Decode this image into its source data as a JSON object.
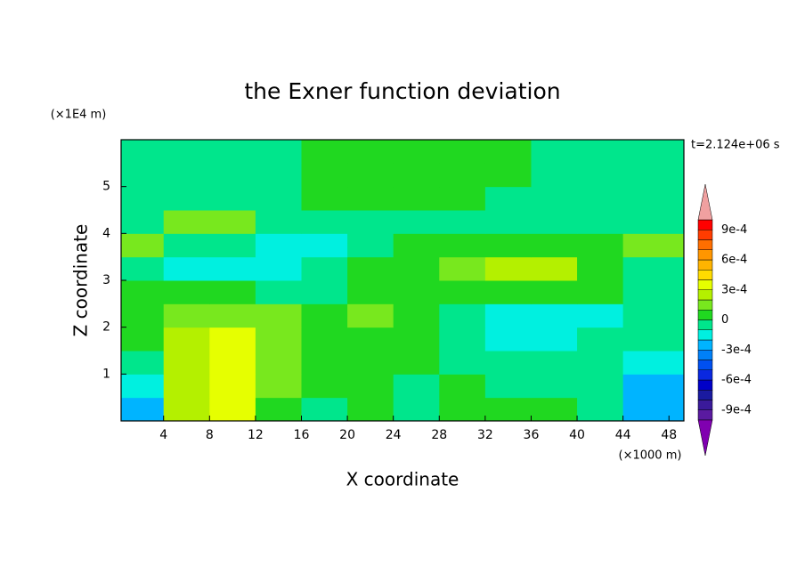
{
  "chart_data": {
    "type": "contour",
    "title": "the Exner function deviation",
    "x_label": "X coordinate",
    "y_label": "Z coordinate",
    "x_unit": "(×1000 m)",
    "y_unit": "(×1E4 m)",
    "time_label": "t=2.124e+06 s",
    "xlim": [
      0.3,
      49.3
    ],
    "ylim": [
      0,
      6
    ],
    "xticks": [
      4,
      8,
      12,
      16,
      20,
      24,
      28,
      32,
      36,
      40,
      44,
      48
    ],
    "yticks": [
      1,
      2,
      3,
      4,
      5
    ],
    "x": [
      2,
      6,
      10,
      14,
      18,
      22,
      26,
      30,
      34,
      38,
      42,
      46
    ],
    "y": [
      0.25,
      0.75,
      1.25,
      1.75,
      2.25,
      2.75,
      3.25,
      3.75,
      4.25,
      4.75,
      5.25,
      5.75
    ],
    "z": [
      [
        -0.00025,
        0.00025,
        0.00035,
        5e-05,
        -5e-05,
        5e-05,
        -5e-05,
        5e-05,
        5e-05,
        5e-05,
        -5e-05,
        -0.00025
      ],
      [
        -0.00015,
        0.00025,
        0.00035,
        0.00015,
        5e-05,
        5e-05,
        -5e-05,
        5e-05,
        -5e-05,
        -5e-05,
        -5e-05,
        -0.00025
      ],
      [
        -5e-05,
        0.00025,
        0.00035,
        0.00015,
        5e-05,
        5e-05,
        5e-05,
        -5e-05,
        -5e-05,
        -5e-05,
        -5e-05,
        -0.00015
      ],
      [
        5e-05,
        0.00025,
        0.00035,
        0.00015,
        5e-05,
        5e-05,
        5e-05,
        -5e-05,
        -0.00015,
        -0.00015,
        -5e-05,
        -5e-05
      ],
      [
        5e-05,
        0.00015,
        0.00015,
        0.00015,
        5e-05,
        0.00015,
        5e-05,
        -5e-05,
        -0.00015,
        -0.00015,
        -0.00015,
        -5e-05
      ],
      [
        5e-05,
        5e-05,
        5e-05,
        -5e-05,
        -5e-05,
        5e-05,
        5e-05,
        5e-05,
        5e-05,
        5e-05,
        5e-05,
        -5e-05
      ],
      [
        -5e-05,
        -0.00015,
        -0.00015,
        -0.00015,
        -5e-05,
        5e-05,
        5e-05,
        0.00015,
        0.00025,
        0.00025,
        5e-05,
        -5e-05
      ],
      [
        0.00015,
        -5e-05,
        -5e-05,
        -0.00015,
        -0.00015,
        -5e-05,
        5e-05,
        5e-05,
        5e-05,
        5e-05,
        5e-05,
        0.00015
      ],
      [
        -5e-05,
        0.00015,
        0.00015,
        -5e-05,
        -5e-05,
        -5e-05,
        -5e-05,
        -5e-05,
        -5e-05,
        -5e-05,
        -5e-05,
        -5e-05
      ],
      [
        -5e-05,
        -5e-05,
        -5e-05,
        -5e-05,
        5e-05,
        5e-05,
        5e-05,
        5e-05,
        -5e-05,
        -5e-05,
        -5e-05,
        -5e-05
      ],
      [
        -5e-05,
        -5e-05,
        -5e-05,
        -5e-05,
        5e-05,
        5e-05,
        5e-05,
        5e-05,
        5e-05,
        -5e-05,
        -5e-05,
        -5e-05
      ],
      [
        -5e-05,
        -5e-05,
        -5e-05,
        -5e-05,
        5e-05,
        5e-05,
        5e-05,
        5e-05,
        5e-05,
        -5e-05,
        -5e-05,
        -5e-05
      ]
    ],
    "colorbar": {
      "levels": [
        -0.001,
        -0.0009,
        -0.0008,
        -0.0007,
        -0.0006,
        -0.0005,
        -0.0004,
        -0.0003,
        -0.0002,
        -0.0001,
        0,
        0.0001,
        0.0002,
        0.0003,
        0.0004,
        0.0005,
        0.0006,
        0.0007,
        0.0008,
        0.0009,
        0.001
      ],
      "colors": [
        "#5a1aa0",
        "#3a1a9a",
        "#1a1aa0",
        "#0000c8",
        "#0a28e0",
        "#0050f0",
        "#0080f8",
        "#00b4ff",
        "#00f0e0",
        "#00e68c",
        "#20d820",
        "#78e81e",
        "#b4f000",
        "#e6ff00",
        "#ffdc00",
        "#ffb400",
        "#ff9600",
        "#ff6e00",
        "#ff3c00",
        "#ff0000"
      ],
      "under_color": "#8000b0",
      "over_color": "#f0a0a0",
      "ticks": [
        {
          "value": -0.0009,
          "label": "-9e-4"
        },
        {
          "value": -0.0006,
          "label": "-6e-4"
        },
        {
          "value": -0.0003,
          "label": "-3e-4"
        },
        0,
        {
          "value": 0.0003,
          "label": "3e-4"
        },
        {
          "value": 0.0006,
          "label": "6e-4"
        },
        {
          "value": 0.0009,
          "label": "9e-4"
        }
      ]
    }
  }
}
